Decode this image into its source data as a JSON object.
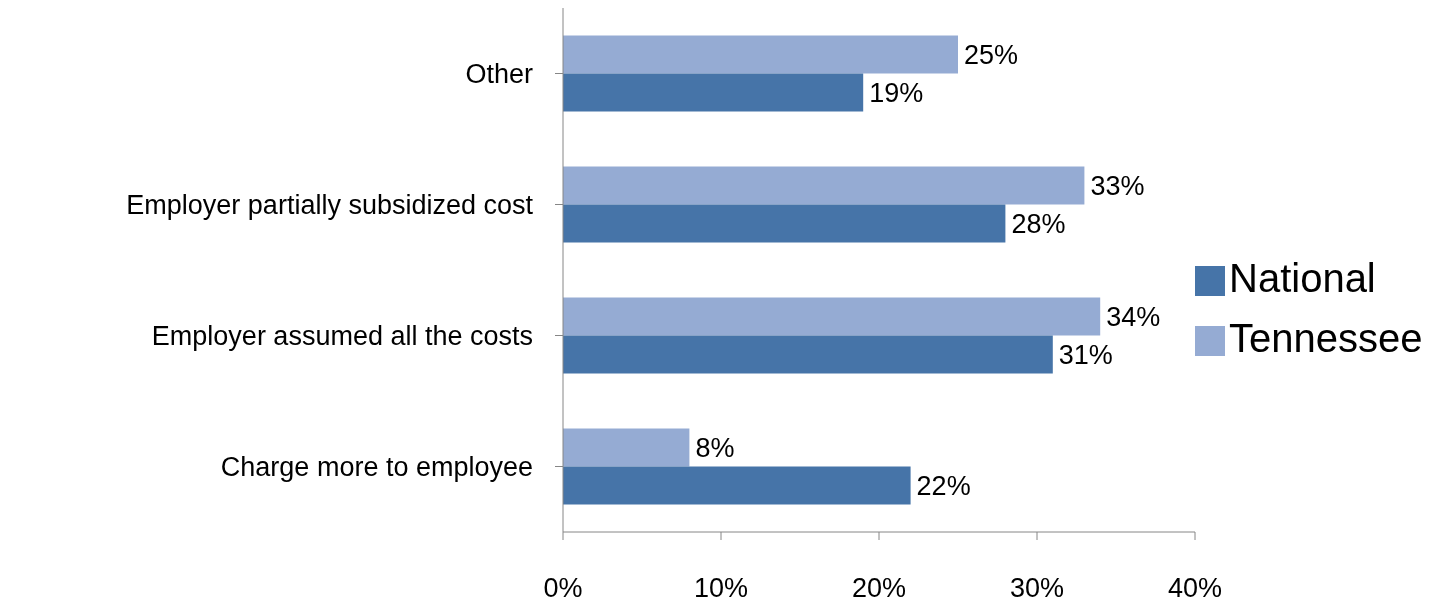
{
  "chart_data": {
    "type": "bar",
    "orientation": "horizontal",
    "categories": [
      "Other",
      "Employer partially subsidized cost",
      "Employer assumed all the costs",
      "Charge more to employee"
    ],
    "series": [
      {
        "name": "Tennessee",
        "color": "#95abd3",
        "values": [
          25,
          33,
          34,
          8
        ],
        "value_labels": [
          "25%",
          "33%",
          "34%",
          "8%"
        ]
      },
      {
        "name": "National",
        "color": "#4674a8",
        "values": [
          19,
          28,
          31,
          22
        ],
        "value_labels": [
          "19%",
          "28%",
          "31%",
          "22%"
        ]
      }
    ],
    "xlim": [
      0,
      40
    ],
    "xticks": [
      {
        "value": 0,
        "label": "0%"
      },
      {
        "value": 10,
        "label": "10%"
      },
      {
        "value": 20,
        "label": "20%"
      },
      {
        "value": 30,
        "label": "30%"
      },
      {
        "value": 40,
        "label": "40%"
      }
    ],
    "grid": false,
    "legend": "right"
  }
}
